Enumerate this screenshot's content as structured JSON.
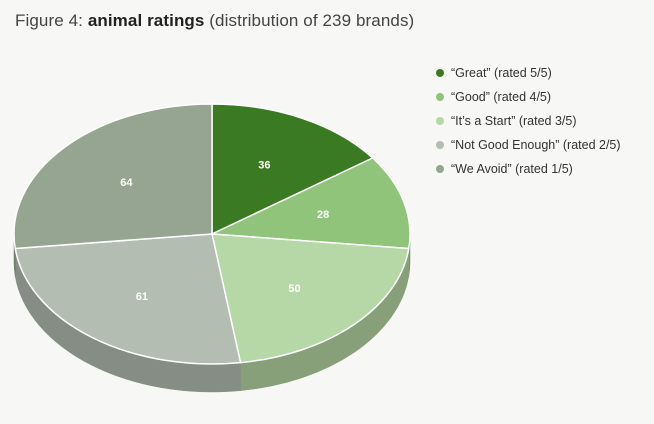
{
  "title": {
    "prefix": "Figure 4: ",
    "bold": "animal ratings",
    "suffix": " (distribution of 239 brands)"
  },
  "chart_data": {
    "type": "pie",
    "style": "3d",
    "title": "Figure 4: animal ratings (distribution of 239 brands)",
    "legend_position": "right",
    "series": [
      {
        "name": "“Great” (rated 5/5)",
        "value": 36,
        "color": "#3a7a22",
        "side": "#2b5c18"
      },
      {
        "name": "“Good” (rated 4/5)",
        "value": 28,
        "color": "#8fc47a",
        "side": "#6b9a5a"
      },
      {
        "name": "“It’s a Start” (rated 3/5)",
        "value": 50,
        "color": "#b5d8a6",
        "side": "#87a07a"
      },
      {
        "name": "“Not Good Enough” (rated 2/5)",
        "value": 61,
        "color": "#b3bdb1",
        "side": "#858d84"
      },
      {
        "name": "“We Avoid” (rated 1/5)",
        "value": 64,
        "color": "#96a591",
        "side": "#707b6c"
      }
    ]
  }
}
